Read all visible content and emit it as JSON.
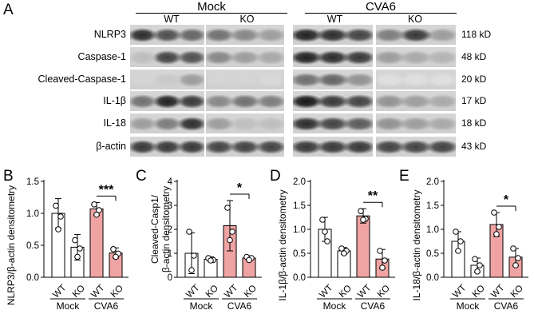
{
  "panel_a": {
    "letter": "A",
    "groups": [
      {
        "title": "Mock",
        "subs": [
          "WT",
          "KO"
        ]
      },
      {
        "title": "CVA6",
        "subs": [
          "WT",
          "KO"
        ]
      }
    ],
    "rows": [
      {
        "label": "NLRP3",
        "kd": "118 kD",
        "intensity": [
          [
            0.85,
            0.7,
            0.6
          ],
          [
            0.55,
            0.45,
            0.35
          ],
          [
            0.9,
            0.85,
            0.75
          ],
          [
            0.5,
            0.8,
            0.35
          ]
        ]
      },
      {
        "label": "Caspase-1",
        "kd": "48 kD",
        "intensity": [
          [
            0.2,
            0.75,
            0.7
          ],
          [
            0.45,
            0.35,
            0.3
          ],
          [
            0.9,
            0.85,
            0.8
          ],
          [
            0.35,
            0.3,
            0.25
          ]
        ]
      },
      {
        "label": "Cleaved-Caspase-1",
        "kd": "20 kD",
        "intensity": [
          [
            0.1,
            0.15,
            0.35
          ],
          [
            0.1,
            0.1,
            0.08
          ],
          [
            0.55,
            0.6,
            0.4
          ],
          [
            0.05,
            0.05,
            0.05
          ]
        ]
      },
      {
        "label": "IL-1β",
        "kd": "17 kD",
        "intensity": [
          [
            0.55,
            0.9,
            0.8
          ],
          [
            0.45,
            0.55,
            0.5
          ],
          [
            0.95,
            0.8,
            0.75
          ],
          [
            0.4,
            0.35,
            0.3
          ]
        ]
      },
      {
        "label": "IL-18",
        "kd": "18 kD",
        "intensity": [
          [
            0.35,
            0.5,
            0.85
          ],
          [
            0.35,
            0.2,
            0.2
          ],
          [
            0.85,
            0.75,
            0.65
          ],
          [
            0.4,
            0.35,
            0.3
          ]
        ]
      },
      {
        "label": "β-actin",
        "kd": "43 kD",
        "intensity": [
          [
            0.8,
            0.8,
            0.8
          ],
          [
            0.75,
            0.75,
            0.75
          ],
          [
            0.8,
            0.8,
            0.8
          ],
          [
            0.75,
            0.75,
            0.75
          ]
        ]
      }
    ]
  },
  "colors": {
    "wt_cva6_bar": "#f0a3a3",
    "bar_edge": "#000000",
    "white_bar": "#ffffff"
  },
  "chart_data": [
    {
      "letter": "B",
      "type": "bar",
      "ylabel": "NLRP3/β-actin densitometry",
      "ylim": [
        0,
        1.5
      ],
      "yticks": [
        "0.0",
        "0.5",
        "1.0",
        "1.5"
      ],
      "categories": [
        "WT",
        "KO",
        "WT",
        "KO"
      ],
      "groups": [
        "Mock",
        "CVA6"
      ],
      "values": [
        1.0,
        0.47,
        1.07,
        0.38
      ],
      "errors": [
        0.23,
        0.2,
        0.1,
        0.08
      ],
      "points": [
        [
          1.12,
          0.95,
          0.75
        ],
        [
          0.58,
          0.45,
          0.32
        ],
        [
          1.14,
          1.05,
          0.98
        ],
        [
          0.44,
          0.37,
          0.32
        ]
      ],
      "sig": "***"
    },
    {
      "letter": "C",
      "type": "bar",
      "ylabel": "Cleaved-Casp1/ β-actin densitometry",
      "ylim": [
        0,
        4
      ],
      "yticks": [
        "0",
        "1",
        "2",
        "3",
        "4"
      ],
      "categories": [
        "WT",
        "KO",
        "WT",
        "KO"
      ],
      "groups": [
        "Mock",
        "CVA6"
      ],
      "values": [
        1.0,
        0.75,
        2.15,
        0.8
      ],
      "errors": [
        0.85,
        0.1,
        1.05,
        0.1
      ],
      "points": [
        [
          1.9,
          0.9,
          0.3
        ],
        [
          0.8,
          0.72,
          0.7
        ],
        [
          2.9,
          1.9,
          1.55
        ],
        [
          0.85,
          0.8,
          0.72
        ]
      ],
      "sig": "*"
    },
    {
      "letter": "D",
      "type": "bar",
      "ylabel": "IL-1β/β-actin densitometry",
      "ylim": [
        0,
        2.0
      ],
      "yticks": [
        "0.0",
        "0.5",
        "1.0",
        "1.5",
        "2.0"
      ],
      "categories": [
        "WT",
        "KO",
        "WT",
        "KO"
      ],
      "groups": [
        "Mock",
        "CVA6"
      ],
      "values": [
        1.0,
        0.55,
        1.28,
        0.38
      ],
      "errors": [
        0.25,
        0.07,
        0.15,
        0.2
      ],
      "points": [
        [
          1.2,
          0.75,
          0.95
        ],
        [
          0.6,
          0.55,
          0.5
        ],
        [
          1.38,
          1.22,
          1.2
        ],
        [
          0.55,
          0.35,
          0.2
        ]
      ],
      "sig": "**"
    },
    {
      "letter": "E",
      "type": "bar",
      "ylabel": "IL-18/β-actin densitometry",
      "ylim": [
        0,
        2.0
      ],
      "yticks": [
        "0.0",
        "0.5",
        "1.0",
        "1.5",
        "2.0"
      ],
      "categories": [
        "WT",
        "KO",
        "WT",
        "KO"
      ],
      "groups": [
        "Mock",
        "CVA6"
      ],
      "values": [
        0.75,
        0.25,
        1.1,
        0.42
      ],
      "errors": [
        0.2,
        0.15,
        0.25,
        0.18
      ],
      "points": [
        [
          0.95,
          0.75,
          0.55
        ],
        [
          0.38,
          0.25,
          0.12
        ],
        [
          1.35,
          1.05,
          0.9
        ],
        [
          0.6,
          0.4,
          0.25
        ]
      ],
      "sig": "*"
    }
  ]
}
